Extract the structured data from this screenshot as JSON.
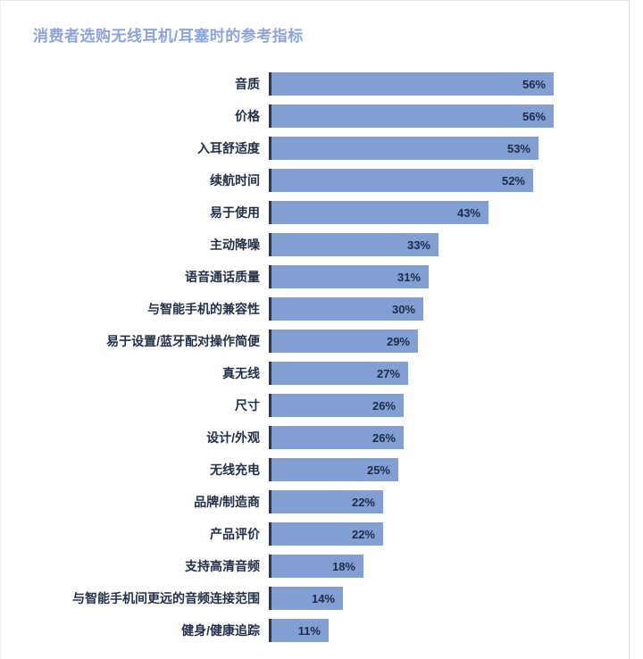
{
  "page": {
    "title": "消费者选购无线耳机/耳塞时的参考指标"
  },
  "chart_data": {
    "type": "bar",
    "orientation": "horizontal",
    "title": "消费者选购无线耳机/耳塞时的参考指标",
    "categories": [
      "音质",
      "价格",
      "入耳舒适度",
      "续航时间",
      "易于使用",
      "主动降噪",
      "语音通话质量",
      "与智能手机的兼容性",
      "易于设置/蓝牙配对操作简便",
      "真无线",
      "尺寸",
      "设计/外观",
      "无线充电",
      "品牌/制造商",
      "产品评价",
      "支持高清音频",
      "与智能手机间更远的音频连接范围",
      "健身/健康追踪"
    ],
    "values": [
      56,
      56,
      53,
      52,
      43,
      33,
      31,
      30,
      29,
      27,
      26,
      26,
      25,
      22,
      22,
      18,
      14,
      11
    ],
    "value_labels": [
      "56%",
      "56%",
      "53%",
      "52%",
      "43%",
      "33%",
      "31%",
      "30%",
      "29%",
      "27%",
      "26%",
      "26%",
      "25%",
      "22%",
      "22%",
      "18%",
      "14%",
      "11%"
    ],
    "xlim": [
      0,
      60
    ],
    "grid": false,
    "legend": false,
    "xlabel": "",
    "ylabel": "",
    "colors": {
      "bar_fill": "#819FD2",
      "bar_edge": "#2A3850",
      "value_label": "#1B2A4B",
      "category_label": "#233047",
      "title": "#8BA4DB"
    }
  }
}
